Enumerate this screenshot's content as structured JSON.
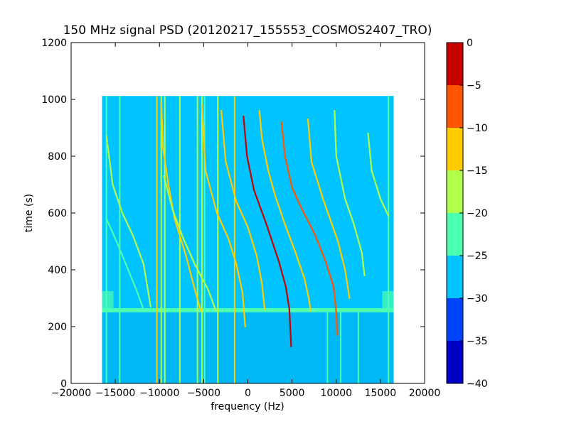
{
  "chart_data": {
    "type": "heatmap",
    "title": "150 MHz signal PSD (20120217_155553_COSMOS2407_TRO)",
    "xlabel": "frequency (Hz)",
    "ylabel": "time (s)",
    "xlim": [
      -20000,
      20000
    ],
    "ylim": [
      0,
      1200
    ],
    "xticks": [
      -20000,
      -15000,
      -10000,
      -5000,
      0,
      5000,
      10000,
      15000,
      20000
    ],
    "yticks": [
      0,
      200,
      400,
      600,
      800,
      1000,
      1200
    ],
    "grid": false,
    "data_extent": {
      "frequency": [
        -16500,
        16500
      ],
      "time": [
        0,
        1012
      ]
    },
    "noise_step_time": 250,
    "colorbar": {
      "levels": [
        -40,
        -35,
        -30,
        -25,
        -20,
        -15,
        -10,
        -5,
        0
      ],
      "ticks": [
        0,
        -5,
        -10,
        -15,
        -20,
        -25,
        -30,
        -35,
        -40
      ],
      "colors": [
        "#0000c8",
        "#0044ff",
        "#00c4ff",
        "#4dffb0",
        "#b0ff4d",
        "#ffcc00",
        "#ff5500",
        "#c80000"
      ]
    },
    "background": {
      "upper_level": "#00c4ff",
      "lower_level": "#00b9f4",
      "boundary_band": "#4dffb0"
    },
    "vertical_lines": [
      {
        "freq": -16000,
        "t0": 0,
        "t1": 1012,
        "level": -22
      },
      {
        "freq": -14500,
        "t0": 0,
        "t1": 1012,
        "level": -22
      },
      {
        "freq": -10300,
        "t0": 0,
        "t1": 1012,
        "level": -15
      },
      {
        "freq": -9800,
        "t0": 0,
        "t1": 1012,
        "level": -18
      },
      {
        "freq": -9400,
        "t0": 0,
        "t1": 1012,
        "level": -20
      },
      {
        "freq": -7700,
        "t0": 0,
        "t1": 1012,
        "level": -18
      },
      {
        "freq": -5700,
        "t0": 0,
        "t1": 1012,
        "level": -18
      },
      {
        "freq": -5200,
        "t0": 0,
        "t1": 1012,
        "level": -20
      },
      {
        "freq": -4900,
        "t0": 0,
        "t1": 1012,
        "level": -22
      },
      {
        "freq": -3400,
        "t0": 0,
        "t1": 1012,
        "level": -20
      },
      {
        "freq": -1500,
        "t0": 0,
        "t1": 1012,
        "level": -15
      },
      {
        "freq": 15900,
        "t0": 0,
        "t1": 1012,
        "level": -22
      },
      {
        "freq": 9000,
        "t0": 0,
        "t1": 250,
        "level": -22
      },
      {
        "freq": 10500,
        "t0": 0,
        "t1": 250,
        "level": -22
      },
      {
        "freq": 12500,
        "t0": 0,
        "t1": 250,
        "level": -22
      }
    ],
    "tracks": [
      {
        "level": -20,
        "points": [
          [
            -16000,
            870
          ],
          [
            -15300,
            700
          ],
          [
            -14200,
            600
          ],
          [
            -13000,
            520
          ],
          [
            -11800,
            420
          ],
          [
            -11000,
            270
          ]
        ]
      },
      {
        "level": -22,
        "points": [
          [
            -16000,
            580
          ],
          [
            -15000,
            510
          ],
          [
            -13800,
            420
          ],
          [
            -12500,
            320
          ],
          [
            -11800,
            260
          ]
        ]
      },
      {
        "level": -15,
        "points": [
          [
            -9800,
            990
          ],
          [
            -9600,
            830
          ],
          [
            -9000,
            700
          ],
          [
            -8300,
            580
          ],
          [
            -7000,
            450
          ],
          [
            -6000,
            330
          ],
          [
            -5300,
            255
          ]
        ]
      },
      {
        "level": -18,
        "points": [
          [
            -9500,
            730
          ],
          [
            -8500,
            610
          ],
          [
            -7300,
            510
          ],
          [
            -6000,
            420
          ],
          [
            -4500,
            330
          ],
          [
            -3600,
            255
          ]
        ]
      },
      {
        "level": -12,
        "points": [
          [
            -5200,
            980
          ],
          [
            -4800,
            750
          ],
          [
            -3500,
            600
          ],
          [
            -2200,
            510
          ],
          [
            -1300,
            420
          ],
          [
            -600,
            320
          ],
          [
            -300,
            200
          ]
        ]
      },
      {
        "level": -15,
        "points": [
          [
            -3000,
            960
          ],
          [
            -2500,
            780
          ],
          [
            -1300,
            640
          ],
          [
            0,
            550
          ],
          [
            1000,
            450
          ],
          [
            1600,
            350
          ],
          [
            1900,
            260
          ]
        ]
      },
      {
        "level": -5,
        "points": [
          [
            -500,
            940
          ],
          [
            -100,
            800
          ],
          [
            700,
            680
          ],
          [
            2100,
            560
          ],
          [
            3500,
            430
          ],
          [
            4300,
            340
          ],
          [
            4700,
            260
          ],
          [
            4900,
            130
          ]
        ]
      },
      {
        "level": -15,
        "points": [
          [
            1300,
            960
          ],
          [
            1600,
            860
          ],
          [
            2300,
            750
          ],
          [
            3100,
            660
          ],
          [
            4200,
            560
          ],
          [
            5400,
            460
          ],
          [
            6400,
            370
          ],
          [
            6900,
            300
          ],
          [
            7100,
            255
          ]
        ]
      },
      {
        "level": -10,
        "points": [
          [
            3800,
            920
          ],
          [
            4200,
            800
          ],
          [
            5000,
            690
          ],
          [
            6000,
            620
          ],
          [
            7500,
            530
          ],
          [
            8800,
            430
          ],
          [
            9700,
            340
          ],
          [
            10000,
            250
          ],
          [
            10100,
            170
          ]
        ]
      },
      {
        "level": -15,
        "points": [
          [
            6800,
            930
          ],
          [
            7200,
            780
          ],
          [
            8500,
            650
          ],
          [
            10200,
            500
          ],
          [
            11000,
            400
          ],
          [
            11500,
            300
          ]
        ]
      },
      {
        "level": -20,
        "points": [
          [
            9800,
            960
          ],
          [
            10000,
            800
          ],
          [
            11000,
            650
          ],
          [
            12000,
            560
          ],
          [
            12900,
            460
          ],
          [
            13200,
            380
          ]
        ]
      },
      {
        "level": -20,
        "points": [
          [
            13600,
            880
          ],
          [
            14000,
            750
          ],
          [
            15000,
            650
          ],
          [
            15900,
            590
          ]
        ]
      }
    ]
  }
}
